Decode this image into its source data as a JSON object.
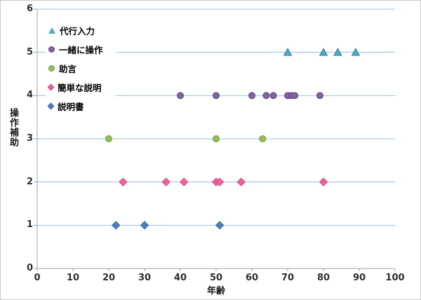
{
  "chart_data": {
    "type": "scatter",
    "title": "",
    "xlabel": "年齢",
    "ylabel": "操作補助",
    "xlim": [
      0,
      100
    ],
    "ylim": [
      0,
      6
    ],
    "x_ticks": [
      0,
      10,
      20,
      30,
      40,
      50,
      60,
      70,
      80,
      90,
      100
    ],
    "y_ticks": [
      0,
      1,
      2,
      3,
      4,
      5,
      6
    ],
    "grid": true,
    "gridline_color": "#9DC3E6",
    "axis_color": "#A6A6A6",
    "legend_position": "top-left-inside",
    "series": [
      {
        "name": "代行入力",
        "marker": "triangle",
        "fill": "#4BACC6",
        "stroke": "#31859C",
        "points": [
          [
            70,
            5
          ],
          [
            80,
            5
          ],
          [
            84,
            5
          ],
          [
            89,
            5
          ]
        ]
      },
      {
        "name": "一緒に操作",
        "marker": "circle",
        "fill": "#8064A2",
        "stroke": "#604A7B",
        "points": [
          [
            40,
            4
          ],
          [
            50,
            4
          ],
          [
            60,
            4
          ],
          [
            64,
            4
          ],
          [
            66,
            4
          ],
          [
            70,
            4
          ],
          [
            71,
            4
          ],
          [
            72,
            4
          ],
          [
            79,
            4
          ]
        ]
      },
      {
        "name": "助言",
        "marker": "circle",
        "fill": "#9BBB59",
        "stroke": "#77933C",
        "points": [
          [
            20,
            3
          ],
          [
            50,
            3
          ],
          [
            63,
            3
          ]
        ]
      },
      {
        "name": "簡単な説明",
        "marker": "diamond",
        "fill": "#F2609E",
        "stroke": "#D84387",
        "points": [
          [
            24,
            2
          ],
          [
            36,
            2
          ],
          [
            41,
            2
          ],
          [
            50,
            2
          ],
          [
            51,
            2
          ],
          [
            57,
            2
          ],
          [
            80,
            2
          ]
        ]
      },
      {
        "name": "説明書",
        "marker": "diamond",
        "fill": "#4F81BD",
        "stroke": "#38649B",
        "points": [
          [
            22,
            1
          ],
          [
            30,
            1
          ],
          [
            51,
            1
          ]
        ]
      }
    ]
  }
}
